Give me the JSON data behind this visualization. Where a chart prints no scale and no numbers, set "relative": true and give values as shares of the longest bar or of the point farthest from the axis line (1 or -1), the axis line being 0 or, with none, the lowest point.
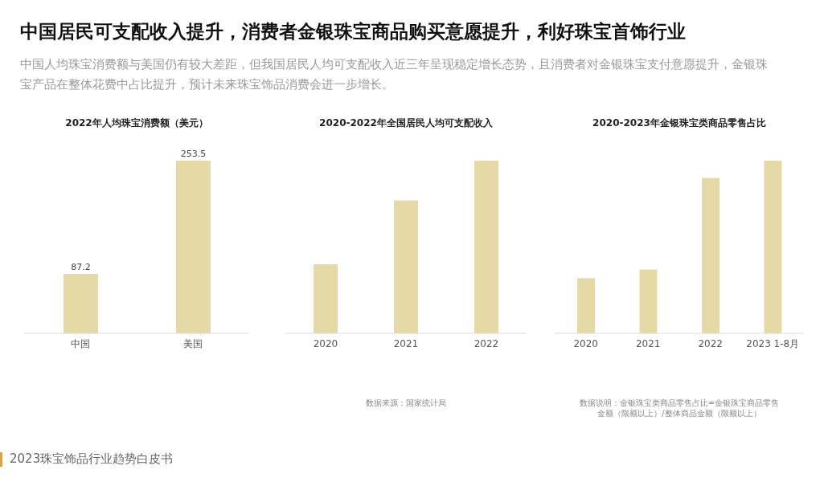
{
  "chart_data": [
    {
      "type": "bar",
      "title": "2022年人均珠宝消费额（美元）",
      "categories": [
        "中国",
        "美国"
      ],
      "values": [
        87.2,
        253.5
      ],
      "color": "#e6d9a8",
      "data_labels": true,
      "annotations": [
        "中国居民可支配收入提升，消费者金银珠宝商品购买意愿提升，利好珠宝首饰行业",
        "中国人均珠宝消费额与美国仍有较大差距，但我国居民人均可支配收入近三年呈现稳定增长态势，且消费者对金银珠宝支付意愿提升，金银珠宝产品在整体花费中占比提升，预计未来珠宝饰品消费会进一步增长。",
        "2023珠宝饰品行业趋势白皮书"
      ]
    },
    {
      "type": "bar",
      "title": "2020-2022年全国居民人均可支配收入",
      "categories": [
        "2020",
        "2021",
        "2022"
      ],
      "values": [
        0.4,
        0.77,
        1
      ],
      "color": "#e6d9a8",
      "relative": true,
      "annotations": [
        "数据来源：国家统计局"
      ]
    },
    {
      "type": "bar",
      "title": "2020-2023年金银珠宝类商品零售占比",
      "categories": [
        "2020",
        "2021",
        "2022",
        "2023 1-8月"
      ],
      "values": [
        0.32,
        0.37,
        0.9,
        1
      ],
      "color": "#e6d9a8",
      "relative": true,
      "annotations": [
        "数据说明：金银珠宝类商品零售占比=金银珠宝商品零售金额（限额以上）/整体商品金额（限额以上）"
      ]
    }
  ]
}
